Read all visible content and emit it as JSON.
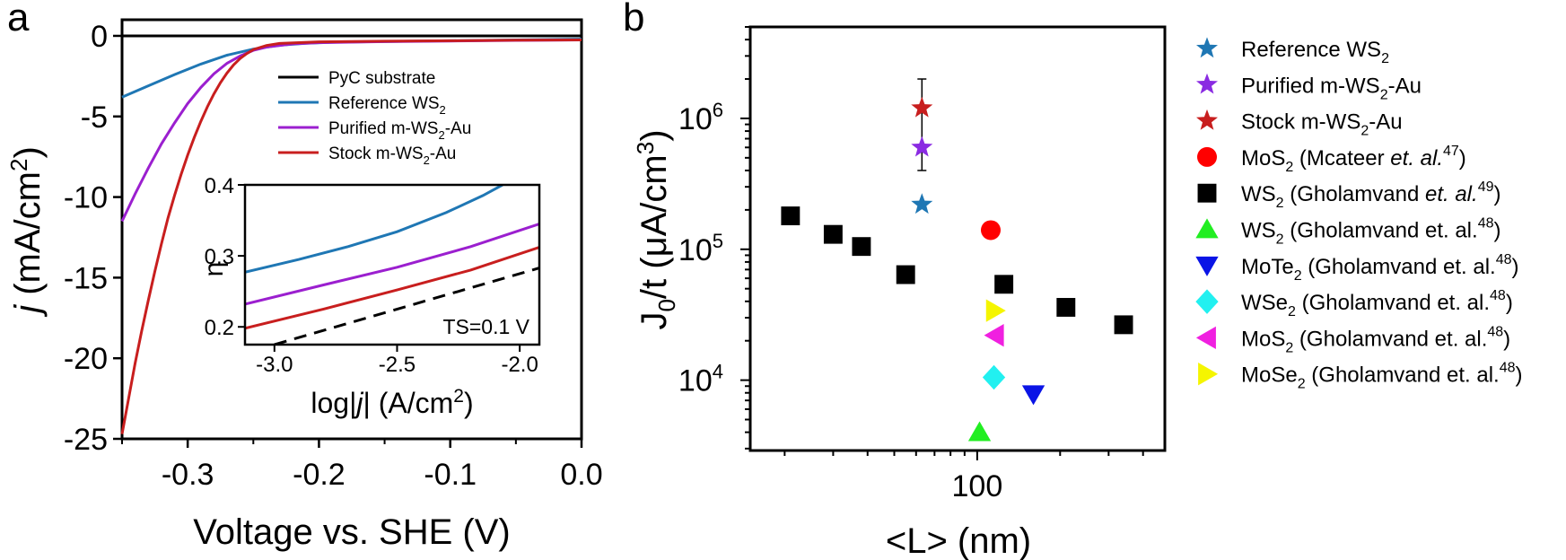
{
  "chart_data": [
    {
      "panel_label": "a",
      "type": "line",
      "xlabel": "Voltage vs. SHE (V)",
      "ylabel_italic": "j",
      "ylabel_rest": " (mA/cm",
      "ylabel_sup": "2",
      "ylabel_close": ")",
      "xlim": [
        -0.35,
        0.0
      ],
      "ylim": [
        -25,
        1
      ],
      "xticks": [
        -0.3,
        -0.2,
        -0.1,
        0.0
      ],
      "xtick_labels": [
        "-0.3",
        "-0.2",
        "-0.1",
        "0.0"
      ],
      "yticks": [
        0,
        -5,
        -10,
        -15,
        -20,
        -25
      ],
      "ytick_labels": [
        "0",
        "-5",
        "-10",
        "-15",
        "-20",
        "-25"
      ],
      "series": [
        {
          "name": "PyC substrate",
          "color": "#000000",
          "points": [
            [
              -0.35,
              0.0
            ],
            [
              0.0,
              0.0
            ]
          ]
        },
        {
          "name": "Reference WS2",
          "color": "#1f77b4",
          "points": [
            [
              -0.35,
              -3.8
            ],
            [
              -0.33,
              -3.1
            ],
            [
              -0.31,
              -2.4
            ],
            [
              -0.29,
              -1.75
            ],
            [
              -0.27,
              -1.2
            ],
            [
              -0.25,
              -0.82
            ],
            [
              -0.23,
              -0.58
            ],
            [
              -0.21,
              -0.46
            ],
            [
              -0.19,
              -0.4
            ],
            [
              -0.15,
              -0.35
            ],
            [
              -0.1,
              -0.3
            ],
            [
              -0.05,
              -0.25
            ],
            [
              0.0,
              -0.2
            ]
          ]
        },
        {
          "name": "Purified m-WS2-Au",
          "color": "#9b1fcf",
          "points": [
            [
              -0.35,
              -11.5
            ],
            [
              -0.34,
              -9.8
            ],
            [
              -0.33,
              -8.2
            ],
            [
              -0.32,
              -6.7
            ],
            [
              -0.31,
              -5.4
            ],
            [
              -0.3,
              -4.2
            ],
            [
              -0.29,
              -3.2
            ],
            [
              -0.28,
              -2.35
            ],
            [
              -0.27,
              -1.7
            ],
            [
              -0.26,
              -1.25
            ],
            [
              -0.25,
              -0.9
            ],
            [
              -0.24,
              -0.7
            ],
            [
              -0.22,
              -0.5
            ],
            [
              -0.2,
              -0.42
            ],
            [
              -0.15,
              -0.36
            ],
            [
              -0.1,
              -0.32
            ],
            [
              -0.05,
              -0.28
            ],
            [
              0.0,
              -0.25
            ]
          ]
        },
        {
          "name": "Stock m-WS2-Au",
          "color": "#c81e1e",
          "points": [
            [
              -0.35,
              -24.7
            ],
            [
              -0.345,
              -22.5
            ],
            [
              -0.34,
              -20.3
            ],
            [
              -0.335,
              -18.3
            ],
            [
              -0.33,
              -16.4
            ],
            [
              -0.325,
              -14.6
            ],
            [
              -0.32,
              -12.9
            ],
            [
              -0.315,
              -11.3
            ],
            [
              -0.31,
              -9.9
            ],
            [
              -0.305,
              -8.6
            ],
            [
              -0.3,
              -7.4
            ],
            [
              -0.295,
              -6.3
            ],
            [
              -0.29,
              -5.3
            ],
            [
              -0.285,
              -4.4
            ],
            [
              -0.28,
              -3.6
            ],
            [
              -0.275,
              -2.9
            ],
            [
              -0.27,
              -2.3
            ],
            [
              -0.265,
              -1.8
            ],
            [
              -0.26,
              -1.4
            ],
            [
              -0.255,
              -1.1
            ],
            [
              -0.25,
              -0.85
            ],
            [
              -0.24,
              -0.6
            ],
            [
              -0.23,
              -0.47
            ],
            [
              -0.2,
              -0.37
            ],
            [
              -0.15,
              -0.33
            ],
            [
              -0.1,
              -0.3
            ],
            [
              -0.05,
              -0.27
            ],
            [
              0.0,
              -0.25
            ]
          ]
        }
      ],
      "legend": [
        {
          "text": "PyC substrate",
          "sub": "",
          "after": "",
          "color": "#000000"
        },
        {
          "text": "Reference WS",
          "sub": "2",
          "after": "",
          "color": "#1f77b4"
        },
        {
          "text": "Purified m-WS",
          "sub": "2",
          "after": "-Au",
          "color": "#9b1fcf"
        },
        {
          "text": "Stock m-WS",
          "sub": "2",
          "after": "-Au",
          "color": "#c81e1e"
        }
      ],
      "inset": {
        "xlabel_pre": "log|",
        "xlabel_italic": "j",
        "xlabel_post": "| (A/cm",
        "xlabel_sup": "2",
        "xlabel_close": ")",
        "ylabel": "η",
        "annotation": "TS=0.1 V",
        "xlim": [
          -3.12,
          -1.92
        ],
        "ylim": [
          0.175,
          0.4
        ],
        "xticks": [
          -3.0,
          -2.5,
          -2.0
        ],
        "xtick_labels": [
          "-3.0",
          "-2.5",
          "-2.0"
        ],
        "yticks": [
          0.2,
          0.3,
          0.4
        ],
        "ytick_labels": [
          "0.2",
          "0.3",
          "0.4"
        ],
        "series": [
          {
            "name": "Reference WS2",
            "color": "#1f77b4",
            "points": [
              [
                -3.12,
                0.277
              ],
              [
                -2.9,
                0.295
              ],
              [
                -2.7,
                0.313
              ],
              [
                -2.5,
                0.334
              ],
              [
                -2.3,
                0.361
              ],
              [
                -2.15,
                0.385
              ],
              [
                -2.07,
                0.4
              ]
            ]
          },
          {
            "name": "Purified m-WS2-Au",
            "color": "#9b1fcf",
            "points": [
              [
                -3.12,
                0.232
              ],
              [
                -2.8,
                0.259
              ],
              [
                -2.5,
                0.284
              ],
              [
                -2.2,
                0.313
              ],
              [
                -1.92,
                0.345
              ]
            ]
          },
          {
            "name": "Stock m-WS2-Au",
            "color": "#c81e1e",
            "points": [
              [
                -3.12,
                0.198
              ],
              [
                -2.8,
                0.225
              ],
              [
                -2.5,
                0.252
              ],
              [
                -2.2,
                0.28
              ],
              [
                -1.92,
                0.312
              ]
            ]
          },
          {
            "name": "Tafel slope 0.1 V",
            "color": "#000000",
            "dashed": true,
            "points": [
              [
                -3.0,
                0.175
              ],
              [
                -1.92,
                0.283
              ]
            ]
          }
        ]
      }
    },
    {
      "panel_label": "b",
      "type": "scatter",
      "xscale": "log",
      "yscale": "log",
      "xlabel": "<L> (nm)",
      "ylabel_main": "J",
      "ylabel_sub": "0",
      "ylabel_mid": "/t (μA/cm",
      "ylabel_sup": "3",
      "ylabel_close": ")",
      "xlim": [
        15,
        480
      ],
      "ylim": [
        2900,
        5000000
      ],
      "x_major_tick_label": "100",
      "ytick_labels": [
        {
          "value": 10000,
          "base": "10",
          "exp": "4"
        },
        {
          "value": 100000,
          "base": "10",
          "exp": "5"
        },
        {
          "value": 1000000,
          "base": "10",
          "exp": "6"
        }
      ],
      "series": [
        {
          "name": "Reference WS2",
          "marker": "star",
          "color": "#1f77b4",
          "points": [
            [
              63,
              220000
            ]
          ]
        },
        {
          "name": "Purified m-WS2-Au",
          "marker": "star",
          "color": "#8a2be2",
          "points": [
            [
              63,
              600000
            ]
          ]
        },
        {
          "name": "Stock m-WS2-Au",
          "marker": "star",
          "color": "#c81e1e",
          "points": [
            [
              63,
              1200000
            ]
          ]
        },
        {
          "name": "MoS2 (Mcateer et. al.47)",
          "marker": "circle",
          "color": "#ff0000",
          "points": [
            [
              112,
              140000
            ]
          ]
        },
        {
          "name": "WS2 (Gholamvand et. al.49)",
          "marker": "square",
          "color": "#000000",
          "points": [
            [
              21,
              180000
            ],
            [
              30,
              130000
            ],
            [
              38,
              105000
            ],
            [
              55,
              64000
            ],
            [
              125,
              54000
            ],
            [
              210,
              36000
            ],
            [
              340,
              26500
            ]
          ]
        },
        {
          "name": "WS2 (Gholamvand et. al.48)",
          "marker": "triangle-up",
          "color": "#22ee22",
          "points": [
            [
              102,
              4000
            ]
          ]
        },
        {
          "name": "MoTe2 (Gholamvand et. al.48)",
          "marker": "triangle-down",
          "color": "#0a14e6",
          "points": [
            [
              160,
              7800
            ]
          ]
        },
        {
          "name": "WSe2 (Gholamvand et. al.48)",
          "marker": "diamond",
          "color": "#22f0f0",
          "points": [
            [
              115,
              10500
            ]
          ]
        },
        {
          "name": "MoS2 (Gholamvand et. al.48)",
          "marker": "triangle-left",
          "color": "#f020e0",
          "points": [
            [
              116,
              22000
            ]
          ]
        },
        {
          "name": "MoSe2 (Gholamvand et. al.48)",
          "marker": "triangle-right",
          "color": "#f5f500",
          "points": [
            [
              116,
              34000
            ]
          ]
        }
      ],
      "error_bars": [
        {
          "x": 63,
          "y_low": 400000,
          "y_high": 2000000
        }
      ],
      "legend": [
        {
          "marker": "star",
          "color": "#1f77b4",
          "pre": "Reference WS",
          "sub": "2",
          "rest": "",
          "italic": "",
          "post": "",
          "sup": "",
          "close": ""
        },
        {
          "marker": "star",
          "color": "#8a2be2",
          "pre": "Purified m-WS",
          "sub": "2",
          "rest": "-Au",
          "italic": "",
          "post": "",
          "sup": "",
          "close": ""
        },
        {
          "marker": "star",
          "color": "#c81e1e",
          "pre": "Stock m-WS",
          "sub": "2",
          "rest": "-Au",
          "italic": "",
          "post": "",
          "sup": "",
          "close": ""
        },
        {
          "marker": "circle",
          "color": "#ff0000",
          "pre": "MoS",
          "sub": "2",
          "rest": " (Mcateer ",
          "italic": "et. al.",
          "post": "",
          "sup": "47",
          "close": ")"
        },
        {
          "marker": "square",
          "color": "#000000",
          "pre": "WS",
          "sub": "2",
          "rest": " (Gholamvand ",
          "italic": "et. al.",
          "post": "",
          "sup": "49",
          "close": ")"
        },
        {
          "marker": "triangle-up",
          "color": "#22ee22",
          "pre": "WS",
          "sub": "2",
          "rest": " (Gholamvand et. al.",
          "italic": "",
          "post": "",
          "sup": "48",
          "close": ")"
        },
        {
          "marker": "triangle-down",
          "color": "#0a14e6",
          "pre": "MoTe",
          "sub": "2",
          "rest": " (Gholamvand et. al.",
          "italic": "",
          "post": "",
          "sup": "48",
          "close": ")"
        },
        {
          "marker": "diamond",
          "color": "#22f0f0",
          "pre": "WSe",
          "sub": "2",
          "rest": " (Gholamvand et. al.",
          "italic": "",
          "post": "",
          "sup": "48",
          "close": ")"
        },
        {
          "marker": "triangle-left",
          "color": "#f020e0",
          "pre": "MoS",
          "sub": "2",
          "rest": " (Gholamvand et. al.",
          "italic": "",
          "post": "",
          "sup": "48",
          "close": ")"
        },
        {
          "marker": "triangle-right",
          "color": "#f5f500",
          "pre": "MoSe",
          "sub": "2",
          "rest": " (Gholamvand et. al.",
          "italic": "",
          "post": "",
          "sup": "48",
          "close": ")"
        }
      ]
    }
  ]
}
